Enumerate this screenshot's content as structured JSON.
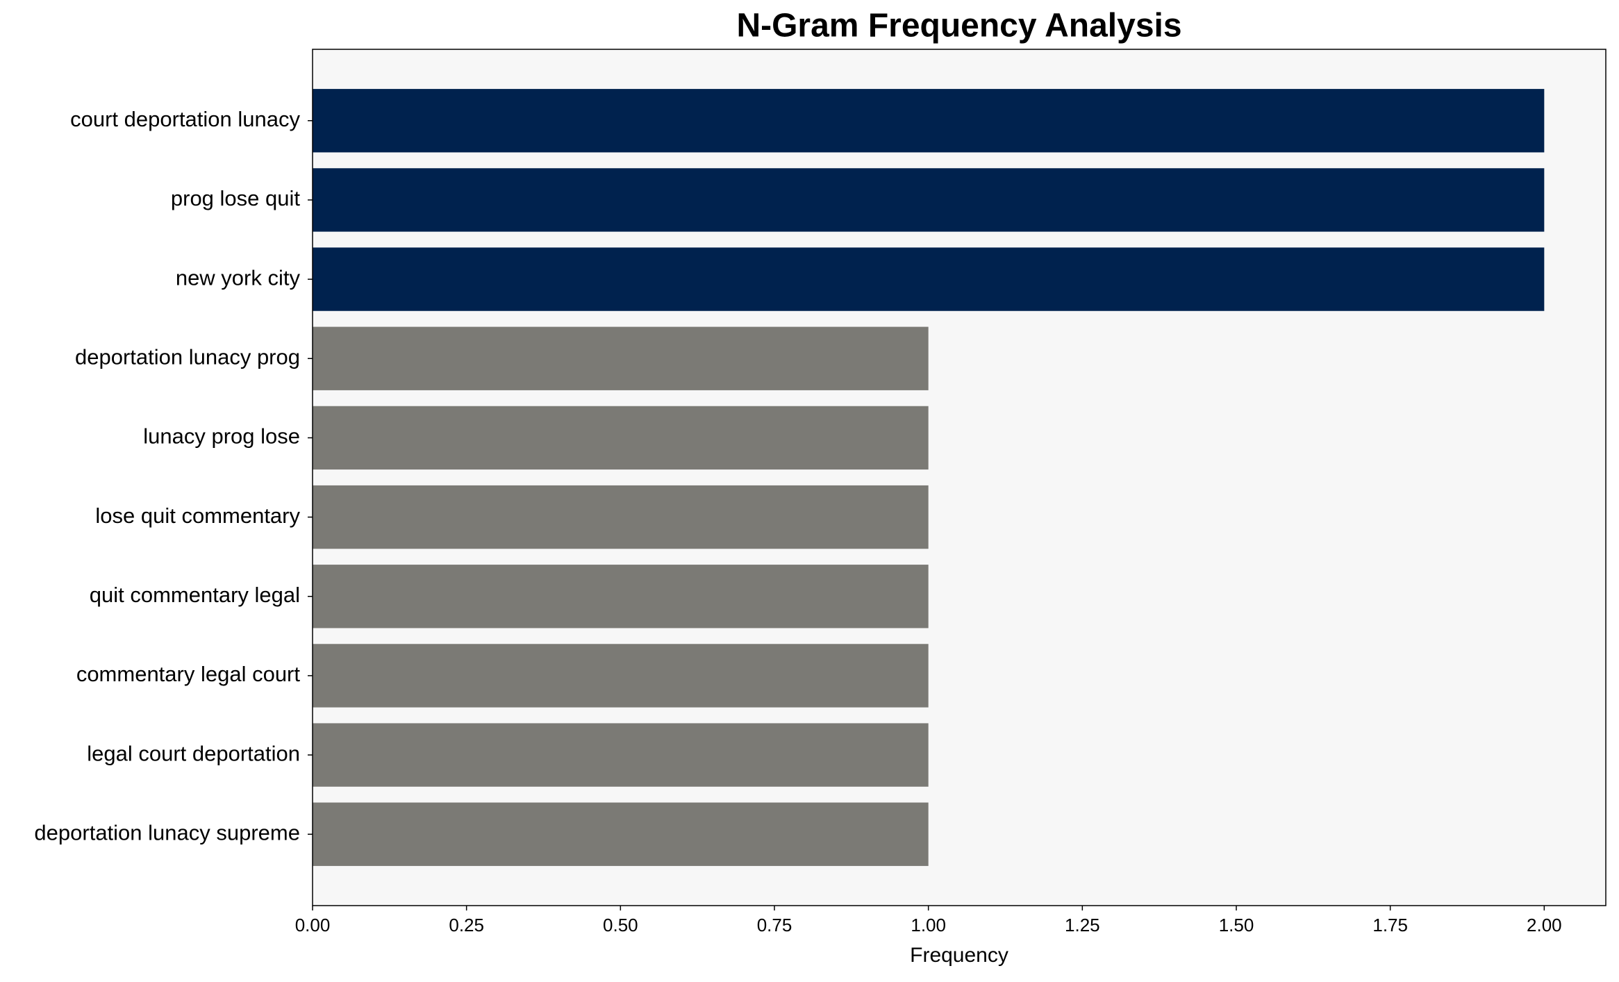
{
  "chart_data": {
    "type": "barh",
    "title": "N-Gram Frequency Analysis",
    "xlabel": "Frequency",
    "categories": [
      "court deportation lunacy",
      "prog lose quit",
      "new york city",
      "deportation lunacy prog",
      "lunacy prog lose",
      "lose quit commentary",
      "quit commentary legal",
      "commentary legal court",
      "legal court deportation",
      "deportation lunacy supreme"
    ],
    "values": [
      2,
      2,
      2,
      1,
      1,
      1,
      1,
      1,
      1,
      1
    ],
    "colors": [
      "#00224e",
      "#00224e",
      "#00224e",
      "#7b7a75",
      "#7b7a75",
      "#7b7a75",
      "#7b7a75",
      "#7b7a75",
      "#7b7a75",
      "#7b7a75"
    ],
    "xlim": [
      0,
      2.1
    ],
    "xticks": [
      {
        "value": 0,
        "label": "0.00"
      },
      {
        "value": 0.25,
        "label": "0.25"
      },
      {
        "value": 0.5,
        "label": "0.50"
      },
      {
        "value": 0.75,
        "label": "0.75"
      },
      {
        "value": 1,
        "label": "1.00"
      },
      {
        "value": 1.25,
        "label": "1.25"
      },
      {
        "value": 1.5,
        "label": "1.50"
      },
      {
        "value": 1.75,
        "label": "1.75"
      },
      {
        "value": 2,
        "label": "2.00"
      }
    ],
    "background": "#f7f7f7"
  }
}
